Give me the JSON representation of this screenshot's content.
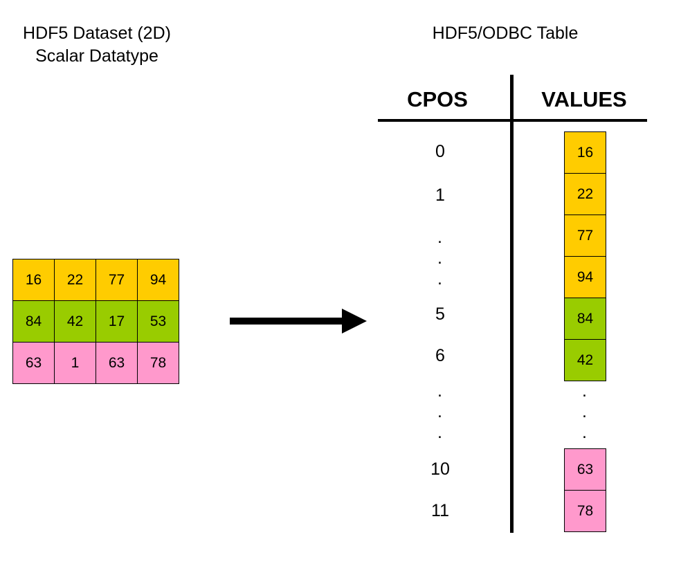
{
  "left": {
    "title_line1": "HDF5 Dataset (2D)",
    "title_line2": "Scalar Datatype",
    "grid": [
      [
        {
          "v": "16",
          "color": "#FFCC00"
        },
        {
          "v": "22",
          "color": "#FFCC00"
        },
        {
          "v": "77",
          "color": "#FFCC00"
        },
        {
          "v": "94",
          "color": "#FFCC00"
        }
      ],
      [
        {
          "v": "84",
          "color": "#99CC00"
        },
        {
          "v": "42",
          "color": "#99CC00"
        },
        {
          "v": "17",
          "color": "#99CC00"
        },
        {
          "v": "53",
          "color": "#99CC00"
        }
      ],
      [
        {
          "v": "63",
          "color": "#FF99CC"
        },
        {
          "v": "1",
          "color": "#FF99CC"
        },
        {
          "v": "63",
          "color": "#FF99CC"
        },
        {
          "v": "78",
          "color": "#FF99CC"
        }
      ]
    ]
  },
  "right": {
    "title": "HDF5/ODBC Table",
    "headers": {
      "cpos": "CPOS",
      "values": "VALUES"
    },
    "cpos": [
      {
        "label": "0"
      },
      {
        "label": "1"
      },
      {
        "label": "5"
      },
      {
        "label": "6"
      },
      {
        "label": "10"
      },
      {
        "label": "11"
      }
    ],
    "values": [
      {
        "v": "16",
        "color": "#FFCC00"
      },
      {
        "v": "22",
        "color": "#FFCC00"
      },
      {
        "v": "77",
        "color": "#FFCC00"
      },
      {
        "v": "94",
        "color": "#FFCC00"
      },
      {
        "v": "84",
        "color": "#99CC00"
      },
      {
        "v": "42",
        "color": "#99CC00"
      },
      {
        "v": "63",
        "color": "#FF99CC"
      },
      {
        "v": "78",
        "color": "#FF99CC"
      }
    ],
    "ellipsis": "."
  },
  "colors": {
    "row1": "#FFCC00",
    "row2": "#99CC00",
    "row3": "#FF99CC"
  }
}
